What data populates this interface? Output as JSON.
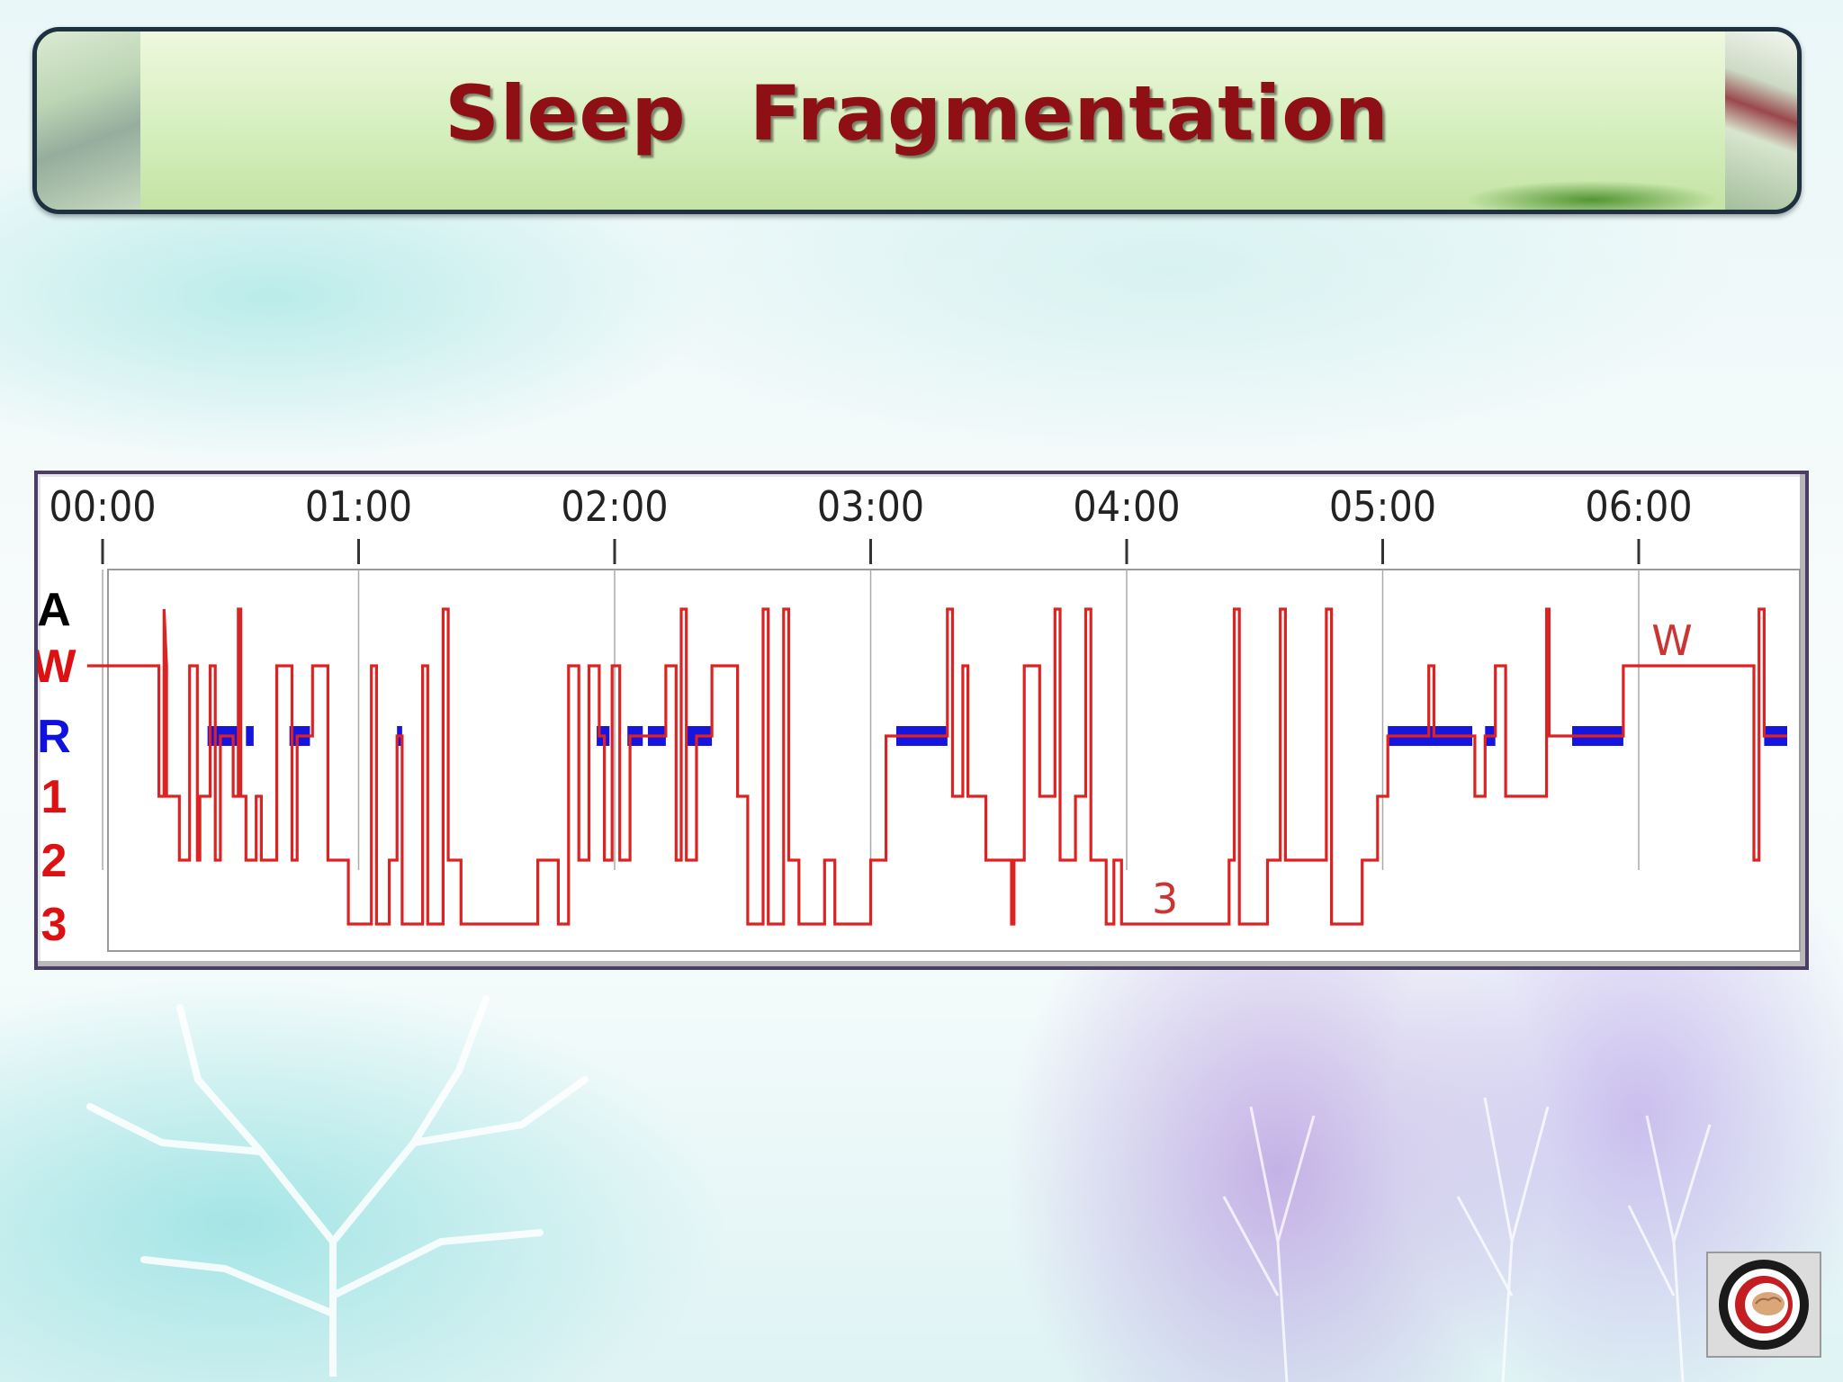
{
  "slide": {
    "title": "Sleep Fragmentation"
  },
  "chart_data": {
    "type": "line",
    "title": "",
    "xlabel": "",
    "ylabel": "",
    "x_ticks": [
      "00:00",
      "01:00",
      "02:00",
      "03:00",
      "04:00",
      "05:00",
      "06:00"
    ],
    "stage_labels": [
      {
        "text": "A",
        "color": "#000000"
      },
      {
        "text": "W",
        "color": "#dd1111"
      },
      {
        "text": "R",
        "color": "#1111dd"
      },
      {
        "text": "1",
        "color": "#dd1111"
      },
      {
        "text": "2",
        "color": "#dd1111"
      },
      {
        "text": "3",
        "color": "#dd1111"
      }
    ],
    "annotations": [
      {
        "text": "3",
        "time": 4.15,
        "stage": "3"
      },
      {
        "text": "W",
        "time": 6.13,
        "stage": "W"
      }
    ],
    "xlim": [
      -0.06,
      6.6
    ],
    "series": [
      {
        "color": "#dd2222",
        "points": [
          [
            -0.06,
            "W"
          ],
          [
            0.22,
            "W"
          ],
          [
            0.22,
            "1"
          ],
          [
            0.24,
            "1"
          ],
          [
            0.24,
            "A"
          ],
          [
            0.25,
            "W"
          ],
          [
            0.25,
            "1"
          ],
          [
            0.3,
            "1"
          ],
          [
            0.3,
            "2"
          ],
          [
            0.34,
            "2"
          ],
          [
            0.34,
            "W"
          ],
          [
            0.37,
            "W"
          ],
          [
            0.37,
            "2"
          ],
          [
            0.38,
            "2"
          ],
          [
            0.38,
            "1"
          ],
          [
            0.42,
            "1"
          ],
          [
            0.42,
            "W"
          ],
          [
            0.44,
            "W"
          ],
          [
            0.44,
            "2"
          ],
          [
            0.46,
            "2"
          ],
          [
            0.46,
            "R"
          ],
          [
            0.51,
            "R"
          ],
          [
            0.51,
            "1"
          ],
          [
            0.53,
            "1"
          ],
          [
            0.53,
            "A"
          ],
          [
            0.54,
            "A"
          ],
          [
            0.54,
            "1"
          ],
          [
            0.56,
            "1"
          ],
          [
            0.56,
            "2"
          ],
          [
            0.6,
            "2"
          ],
          [
            0.6,
            "1"
          ],
          [
            0.62,
            "1"
          ],
          [
            0.62,
            "2"
          ],
          [
            0.68,
            "2"
          ],
          [
            0.68,
            "W"
          ],
          [
            0.74,
            "W"
          ],
          [
            0.74,
            "2"
          ],
          [
            0.76,
            "2"
          ],
          [
            0.76,
            "R"
          ],
          [
            0.82,
            "R"
          ],
          [
            0.82,
            "W"
          ],
          [
            0.88,
            "W"
          ],
          [
            0.88,
            "2"
          ],
          [
            0.96,
            "2"
          ],
          [
            0.96,
            "3"
          ],
          [
            1.05,
            "3"
          ],
          [
            1.05,
            "W"
          ],
          [
            1.07,
            "W"
          ],
          [
            1.07,
            "3"
          ],
          [
            1.12,
            "3"
          ],
          [
            1.12,
            "2"
          ],
          [
            1.15,
            "2"
          ],
          [
            1.15,
            "R"
          ],
          [
            1.17,
            "R"
          ],
          [
            1.17,
            "3"
          ],
          [
            1.25,
            "3"
          ],
          [
            1.25,
            "W"
          ],
          [
            1.27,
            "W"
          ],
          [
            1.27,
            "3"
          ],
          [
            1.33,
            "3"
          ],
          [
            1.33,
            "A"
          ],
          [
            1.35,
            "A"
          ],
          [
            1.35,
            "2"
          ],
          [
            1.4,
            "2"
          ],
          [
            1.4,
            "3"
          ],
          [
            1.7,
            "3"
          ],
          [
            1.7,
            "2"
          ],
          [
            1.78,
            "2"
          ],
          [
            1.78,
            "3"
          ],
          [
            1.82,
            "3"
          ],
          [
            1.82,
            "W"
          ],
          [
            1.86,
            "W"
          ],
          [
            1.86,
            "2"
          ],
          [
            1.9,
            "2"
          ],
          [
            1.9,
            "W"
          ],
          [
            1.94,
            "W"
          ],
          [
            1.94,
            "R"
          ],
          [
            1.96,
            "R"
          ],
          [
            1.96,
            "2"
          ],
          [
            1.99,
            "2"
          ],
          [
            1.99,
            "W"
          ],
          [
            2.02,
            "W"
          ],
          [
            2.02,
            "2"
          ],
          [
            2.06,
            "2"
          ],
          [
            2.06,
            "R"
          ],
          [
            2.2,
            "R"
          ],
          [
            2.2,
            "W"
          ],
          [
            2.24,
            "W"
          ],
          [
            2.24,
            "2"
          ],
          [
            2.26,
            "2"
          ],
          [
            2.26,
            "A"
          ],
          [
            2.28,
            "A"
          ],
          [
            2.28,
            "2"
          ],
          [
            2.32,
            "2"
          ],
          [
            2.32,
            "R"
          ],
          [
            2.38,
            "R"
          ],
          [
            2.38,
            "W"
          ],
          [
            2.48,
            "W"
          ],
          [
            2.48,
            "1"
          ],
          [
            2.52,
            "1"
          ],
          [
            2.52,
            "3"
          ],
          [
            2.58,
            "3"
          ],
          [
            2.58,
            "A"
          ],
          [
            2.6,
            "A"
          ],
          [
            2.6,
            "3"
          ],
          [
            2.66,
            "3"
          ],
          [
            2.66,
            "A"
          ],
          [
            2.68,
            "A"
          ],
          [
            2.68,
            "2"
          ],
          [
            2.72,
            "2"
          ],
          [
            2.72,
            "3"
          ],
          [
            2.82,
            "3"
          ],
          [
            2.82,
            "2"
          ],
          [
            2.86,
            "2"
          ],
          [
            2.86,
            "3"
          ],
          [
            3.0,
            "3"
          ],
          [
            3.0,
            "2"
          ],
          [
            3.06,
            "2"
          ],
          [
            3.06,
            "R"
          ],
          [
            3.3,
            "R"
          ],
          [
            3.3,
            "A"
          ],
          [
            3.32,
            "A"
          ],
          [
            3.32,
            "1"
          ],
          [
            3.36,
            "1"
          ],
          [
            3.36,
            "W"
          ],
          [
            3.38,
            "W"
          ],
          [
            3.38,
            "1"
          ],
          [
            3.45,
            "1"
          ],
          [
            3.45,
            "2"
          ],
          [
            3.55,
            "2"
          ],
          [
            3.55,
            "3"
          ],
          [
            3.56,
            "3"
          ],
          [
            3.56,
            "2"
          ],
          [
            3.6,
            "2"
          ],
          [
            3.6,
            "W"
          ],
          [
            3.66,
            "W"
          ],
          [
            3.66,
            "1"
          ],
          [
            3.72,
            "1"
          ],
          [
            3.72,
            "A"
          ],
          [
            3.74,
            "A"
          ],
          [
            3.74,
            "2"
          ],
          [
            3.8,
            "2"
          ],
          [
            3.8,
            "1"
          ],
          [
            3.84,
            "1"
          ],
          [
            3.84,
            "A"
          ],
          [
            3.86,
            "A"
          ],
          [
            3.86,
            "2"
          ],
          [
            3.92,
            "2"
          ],
          [
            3.92,
            "3"
          ],
          [
            3.95,
            "3"
          ],
          [
            3.95,
            "2"
          ],
          [
            3.98,
            "2"
          ],
          [
            3.98,
            "3"
          ],
          [
            4.4,
            "3"
          ],
          [
            4.4,
            "2"
          ],
          [
            4.42,
            "2"
          ],
          [
            4.42,
            "A"
          ],
          [
            4.44,
            "A"
          ],
          [
            4.44,
            "3"
          ],
          [
            4.55,
            "3"
          ],
          [
            4.55,
            "2"
          ],
          [
            4.6,
            "2"
          ],
          [
            4.6,
            "A"
          ],
          [
            4.62,
            "A"
          ],
          [
            4.62,
            "2"
          ],
          [
            4.78,
            "2"
          ],
          [
            4.78,
            "A"
          ],
          [
            4.8,
            "A"
          ],
          [
            4.8,
            "3"
          ],
          [
            4.92,
            "3"
          ],
          [
            4.92,
            "2"
          ],
          [
            4.98,
            "2"
          ],
          [
            4.98,
            "1"
          ],
          [
            5.02,
            "1"
          ],
          [
            5.02,
            "R"
          ],
          [
            5.18,
            "R"
          ],
          [
            5.18,
            "W"
          ],
          [
            5.2,
            "W"
          ],
          [
            5.2,
            "R"
          ],
          [
            5.36,
            "R"
          ],
          [
            5.36,
            "1"
          ],
          [
            5.4,
            "1"
          ],
          [
            5.4,
            "R"
          ],
          [
            5.44,
            "R"
          ],
          [
            5.44,
            "W"
          ],
          [
            5.48,
            "W"
          ],
          [
            5.48,
            "1"
          ],
          [
            5.64,
            "1"
          ],
          [
            5.64,
            "A"
          ],
          [
            5.65,
            "A"
          ],
          [
            5.65,
            "R"
          ],
          [
            5.94,
            "R"
          ],
          [
            5.94,
            "W"
          ],
          [
            6.45,
            "W"
          ],
          [
            6.45,
            "2"
          ],
          [
            6.47,
            "2"
          ],
          [
            6.47,
            "A"
          ],
          [
            6.49,
            "A"
          ],
          [
            6.49,
            "R"
          ],
          [
            6.58,
            "R"
          ]
        ]
      }
    ],
    "rem_bands": [
      [
        0.41,
        0.54
      ],
      [
        0.56,
        0.59
      ],
      [
        0.73,
        0.81
      ],
      [
        1.15,
        1.17
      ],
      [
        1.93,
        1.98
      ],
      [
        2.05,
        2.11
      ],
      [
        2.13,
        2.2
      ],
      [
        2.28,
        2.38
      ],
      [
        3.1,
        3.3
      ],
      [
        5.02,
        5.35
      ],
      [
        5.4,
        5.44
      ],
      [
        5.74,
        5.94
      ],
      [
        6.49,
        6.58
      ]
    ]
  }
}
